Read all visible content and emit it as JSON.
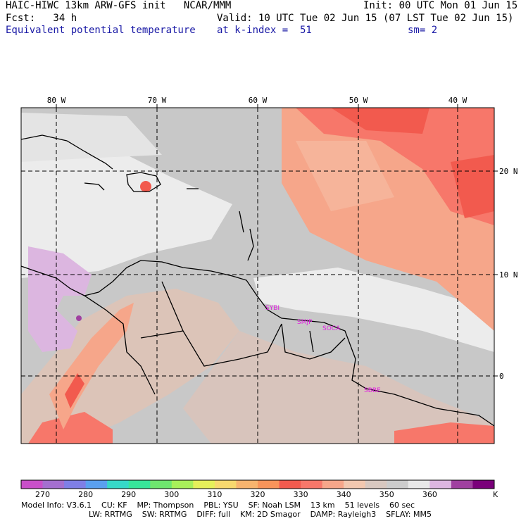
{
  "header": {
    "left1": "HAIC-HIWC 13km ARW-GFS init   NCAR/MMM",
    "left2": "Fcst:   34 h",
    "left3": "Equivalent potential temperature",
    "right1": "Init: 00 UTC Mon 01 Jun 15",
    "right2": "Valid: 10 UTC Tue 02 Jun 15 (07 LST Tue 02 Jun 15)",
    "right3a": "at k-index =  51",
    "right3b": "sm= 2"
  },
  "map": {
    "lon_labels": [
      "80 W",
      "70 W",
      "60 W",
      "50 W",
      "40 W"
    ],
    "lat_labels": [
      "20 N",
      "10 N",
      "0"
    ],
    "stations": [
      "SYBI",
      "SMJP",
      "SOCA",
      "SBBE"
    ],
    "colors": {
      "sea_gray": "#c8c8c8",
      "light": "#ececec",
      "tan": "#f2c8b0",
      "salmon": "#f6a68a",
      "red": "#f25a4e",
      "lavender": "#dcb6e0",
      "station": "#e020e0"
    }
  },
  "colorbar": {
    "ticks": [
      "270",
      "280",
      "290",
      "300",
      "310",
      "320",
      "330",
      "340",
      "350",
      "360"
    ],
    "unit": "K",
    "colors": [
      "#c94fc9",
      "#a46fcf",
      "#7f7fe6",
      "#5aa0f0",
      "#37d8c8",
      "#37e69a",
      "#6ee66e",
      "#a8f05a",
      "#e6f05a",
      "#f8d86e",
      "#f8b46e",
      "#f8945a",
      "#f25a4e",
      "#f7776a",
      "#f6a68a",
      "#f2c8b0",
      "#d8c8c0",
      "#cccccc",
      "#e8e8e8",
      "#dcb6e0",
      "#a040a0",
      "#7a007a"
    ]
  },
  "model_info": {
    "line1": [
      "Model Info: V3.6.1",
      "CU: KF",
      "MP: Thompson",
      "PBL: YSU",
      "SF: Noah LSM",
      "13 km",
      "51 levels",
      "60 sec"
    ],
    "line2": [
      "LW: RRTMG",
      "SW: RRTMG",
      "DIFF: full",
      "KM: 2D Smagor",
      "DAMP: Rayleigh3",
      "SFLAY: MM5"
    ]
  }
}
